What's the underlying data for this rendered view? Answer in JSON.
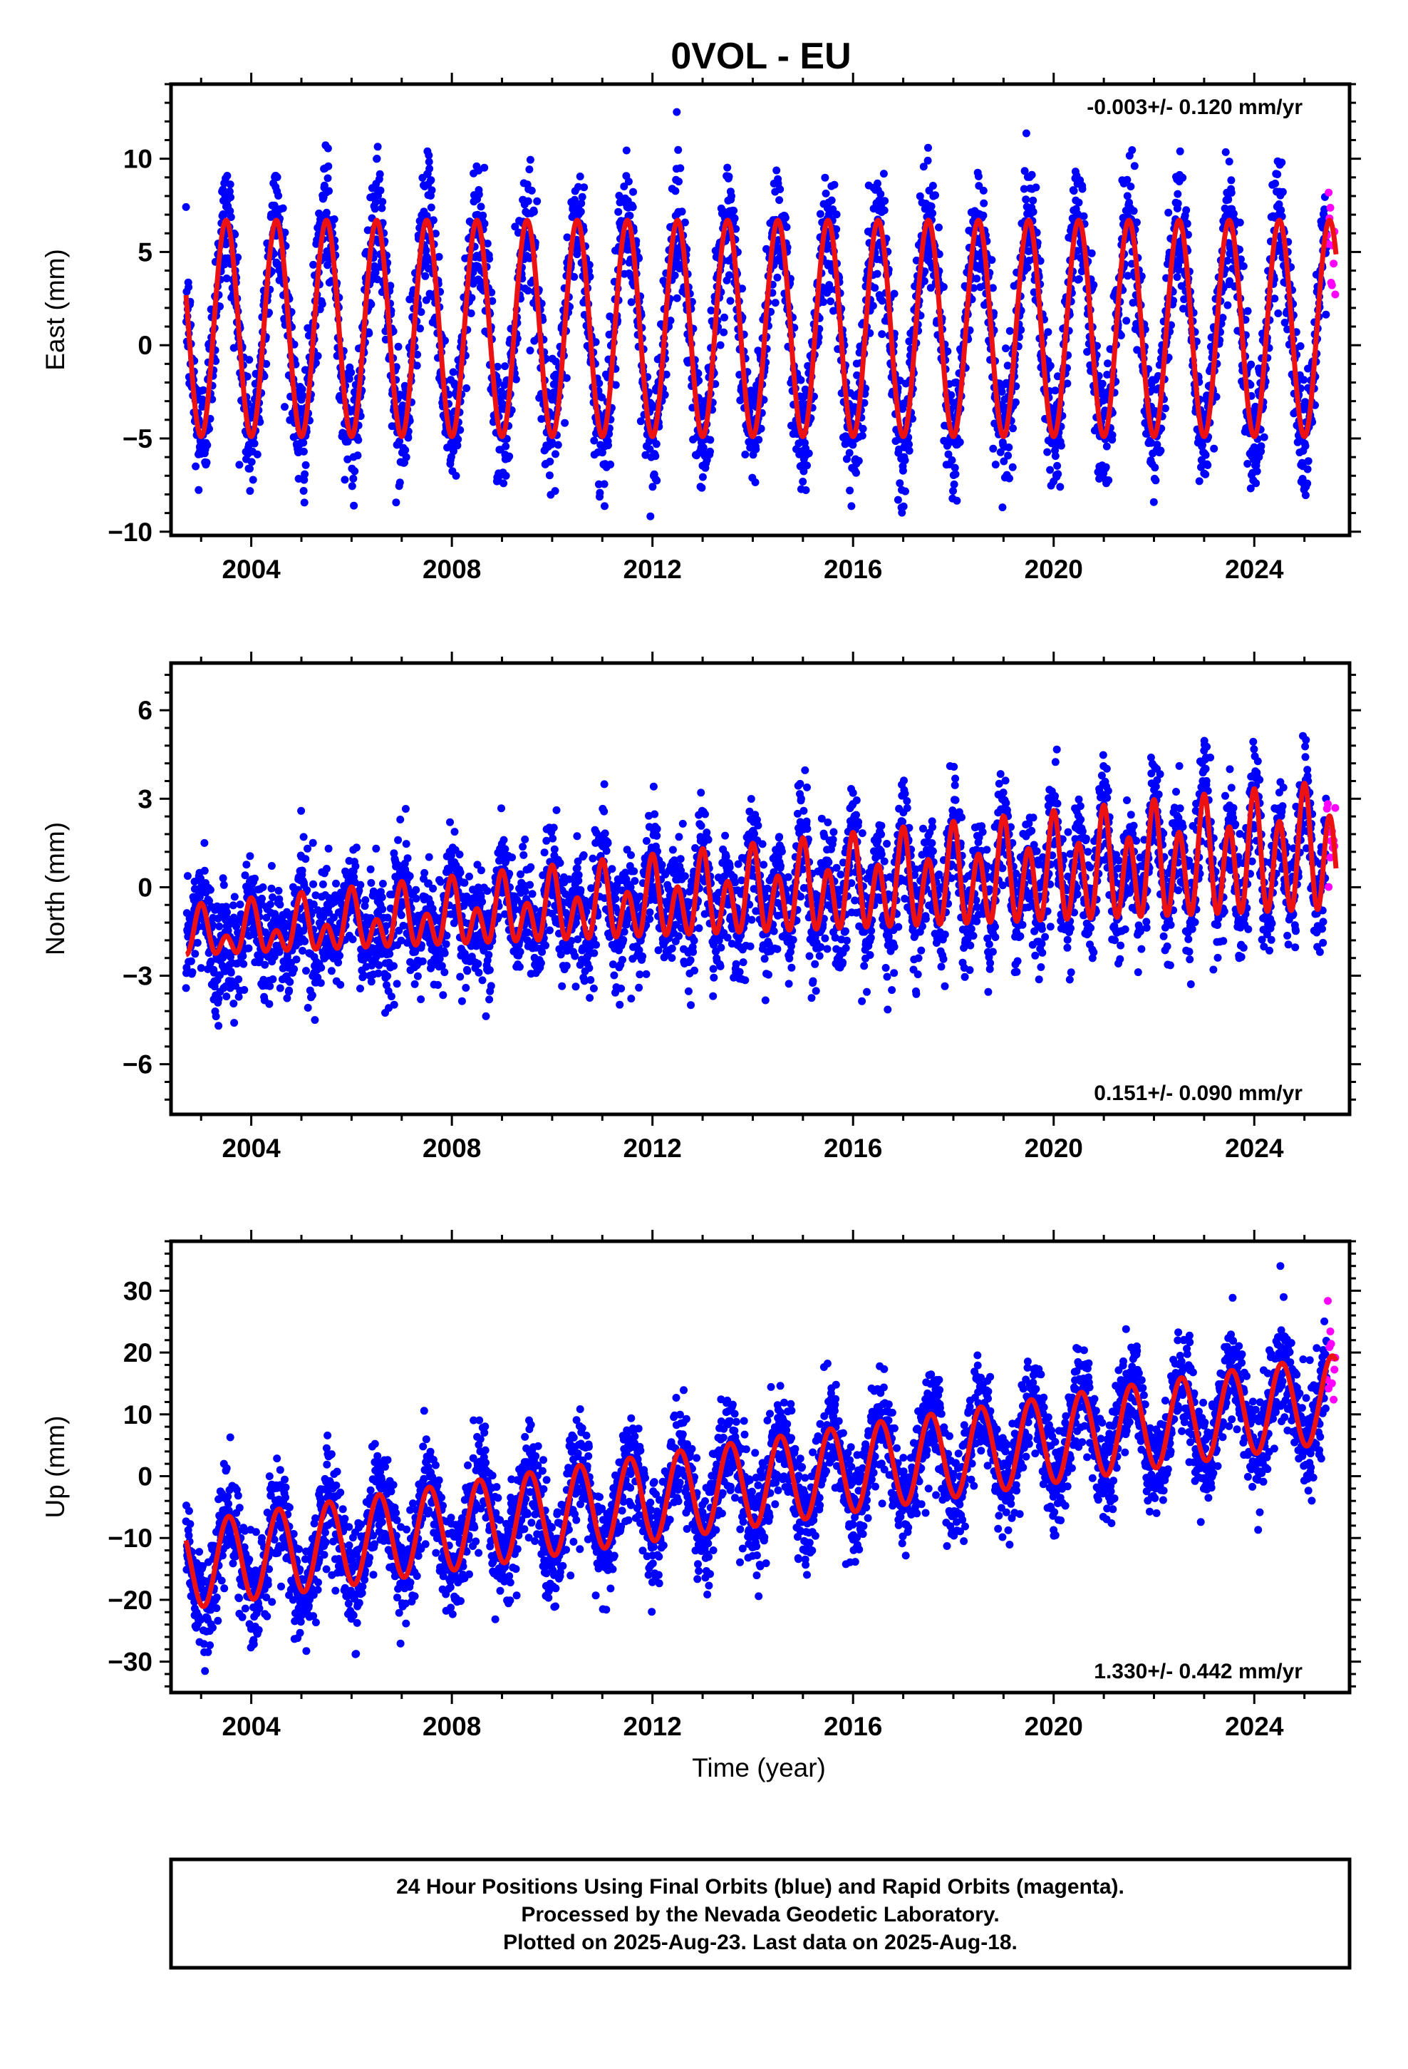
{
  "title": "0VOL - EU",
  "footer": {
    "line1": "24 Hour Positions Using Final Orbits (blue) and Rapid Orbits (magenta).",
    "line2": "Processed by the Nevada Geodetic Laboratory.",
    "line3": "Plotted on 2025-Aug-23. Last data on 2025-Aug-18."
  },
  "colors": {
    "final_orbits": "#0000ff",
    "rapid_orbits": "#ff00ff",
    "model_fit": "#ee1111",
    "frame": "#000000"
  },
  "chart_data": [
    {
      "type": "scatter",
      "component": "East",
      "ylabel": "East (mm)",
      "xlabel": "",
      "xlim": [
        2002.4,
        2025.9
      ],
      "ylim": [
        -10.2,
        14
      ],
      "xticks": [
        2004,
        2008,
        2012,
        2016,
        2020,
        2024
      ],
      "yticks": [
        -10,
        -5,
        0,
        5,
        10
      ],
      "grid": false,
      "rate_label": "-0.003+/- 0.120 mm/yr",
      "rate_position": "top-right",
      "data_start": 2002.7,
      "final_end": 2025.45,
      "data_end": 2025.63,
      "model": {
        "offset": 0.9,
        "trend": 0,
        "annual_amp": 5.8,
        "annual_phase_year": 2003.5,
        "semiannual_amp": 0
      },
      "scatter_sigma": 1.7
    },
    {
      "type": "scatter",
      "component": "North",
      "ylabel": "North (mm)",
      "xlabel": "",
      "xlim": [
        2002.4,
        2025.9
      ],
      "ylim": [
        -7.7,
        7.6
      ],
      "xticks": [
        2004,
        2008,
        2012,
        2016,
        2020,
        2024
      ],
      "yticks": [
        -6,
        -3,
        0,
        3,
        6
      ],
      "grid": false,
      "rate_label": "0.151+/- 0.090 mm/yr",
      "rate_position": "bottom-right",
      "data_start": 2002.7,
      "final_end": 2025.45,
      "data_end": 2025.63,
      "model": {
        "offset": -1.7,
        "trend": 0.125,
        "annual_amp": 0.6,
        "annual_phase_year": 2003.0,
        "semiannual_amp": 0.5,
        "spike_growth": 0.06
      },
      "scatter_sigma": 0.95
    },
    {
      "type": "scatter",
      "component": "Up",
      "ylabel": "Up (mm)",
      "xlabel": "Time (year)",
      "xlim": [
        2002.4,
        2025.9
      ],
      "ylim": [
        -35,
        38
      ],
      "xticks": [
        2004,
        2008,
        2012,
        2016,
        2020,
        2024
      ],
      "yticks": [
        -30,
        -20,
        -10,
        0,
        10,
        20,
        30
      ],
      "grid": false,
      "rate_label": "1.330+/- 0.442 mm/yr",
      "rate_position": "bottom-right",
      "data_start": 2002.7,
      "final_end": 2025.45,
      "data_end": 2025.63,
      "model": {
        "offset": -14.5,
        "trend": 1.18,
        "annual_amp": 7.0,
        "annual_phase_year": 2003.55,
        "semiannual_amp": 0
      },
      "scatter_sigma": 4.2
    }
  ]
}
